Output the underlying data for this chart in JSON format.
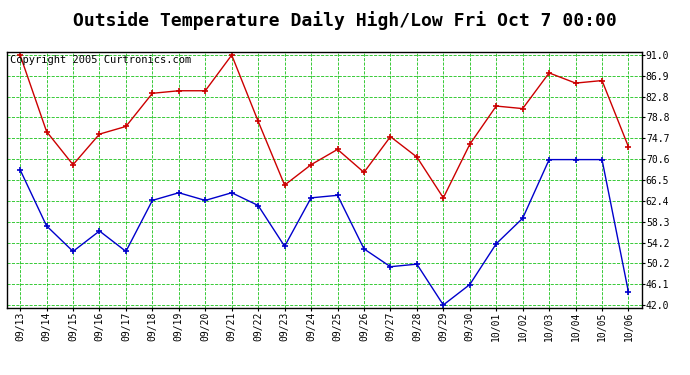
{
  "title": "Outside Temperature Daily High/Low Fri Oct 7 00:00",
  "copyright": "Copyright 2005 Curtronics.com",
  "labels": [
    "09/13",
    "09/14",
    "09/15",
    "09/16",
    "09/17",
    "09/18",
    "09/19",
    "09/20",
    "09/21",
    "09/22",
    "09/23",
    "09/24",
    "09/25",
    "09/26",
    "09/27",
    "09/28",
    "09/29",
    "09/30",
    "10/01",
    "10/02",
    "10/03",
    "10/04",
    "10/05",
    "10/06"
  ],
  "high_temps": [
    91.0,
    76.0,
    69.5,
    75.5,
    77.0,
    83.5,
    84.0,
    84.0,
    91.0,
    78.0,
    65.5,
    69.5,
    72.5,
    68.0,
    75.0,
    71.0,
    63.0,
    73.5,
    81.0,
    80.5,
    87.5,
    85.5,
    86.0,
    73.0
  ],
  "low_temps": [
    68.5,
    57.5,
    52.5,
    56.5,
    52.5,
    62.5,
    64.0,
    62.5,
    64.0,
    61.5,
    53.5,
    63.0,
    63.5,
    53.0,
    49.5,
    50.0,
    42.0,
    46.0,
    54.0,
    59.0,
    70.5,
    70.5,
    70.5,
    44.5
  ],
  "high_color": "#cc0000",
  "low_color": "#0000cc",
  "bg_color": "#ffffff",
  "plot_bg_color": "#ffffff",
  "grid_color": "#00bb00",
  "ylim_min": 42.0,
  "ylim_max": 91.0,
  "yticks": [
    42.0,
    46.1,
    50.2,
    54.2,
    58.3,
    62.4,
    66.5,
    70.6,
    74.7,
    78.8,
    82.8,
    86.9,
    91.0
  ],
  "title_fontsize": 13,
  "tick_fontsize": 7,
  "copyright_fontsize": 7.5
}
